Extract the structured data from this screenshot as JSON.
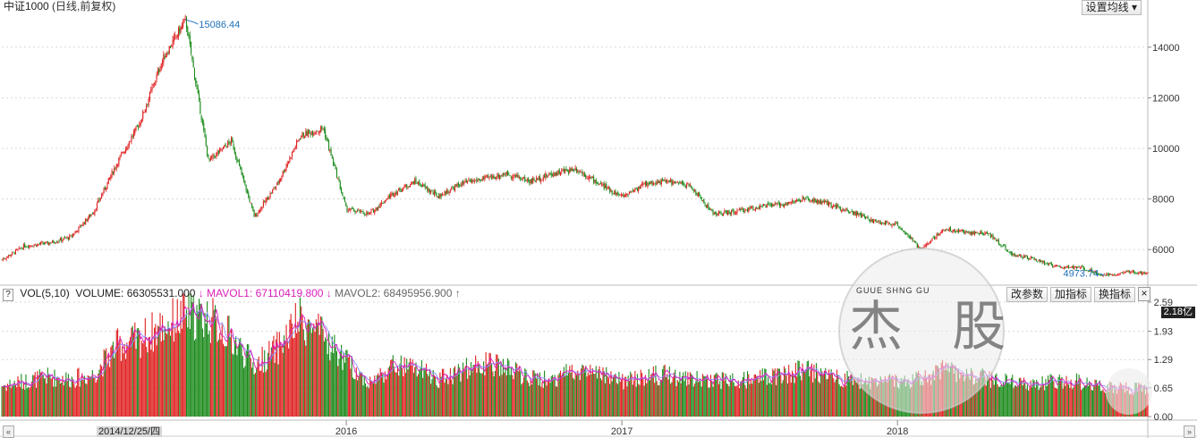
{
  "header": {
    "title": "中证1000",
    "subtitle": "(日线,前复权)",
    "ma_button": "设置均线 ▾"
  },
  "indicator": {
    "help": "?",
    "name": "VOL(5,10)",
    "volume": "VOLUME: 66305531.000",
    "mavol1": "MAVOL1: 67110419.800",
    "mavol2": "MAVOL2: 68495956.900",
    "buttons": [
      "改参数",
      "加指标",
      "换指标"
    ],
    "close": "×",
    "current_value": "2.18亿"
  },
  "watermark": {
    "letters": "GUUE SHNG GU",
    "chars": "杰 股"
  },
  "cursor_date": "2014/12/25/四",
  "colors": {
    "up": "#e02020",
    "down": "#1a8a1a",
    "mavol1": "#d81eb8",
    "mavol2": "#9090ff",
    "grid": "#d8d8d8"
  },
  "chart_data": [
    {
      "type": "candlestick",
      "title": "中证1000 (日线,前复权)",
      "x_labels": [
        "2016",
        "2017",
        "2018"
      ],
      "y_ticks": [
        6000,
        8000,
        10000,
        12000,
        14000
      ],
      "ylim": [
        4700,
        15300
      ],
      "annotations": [
        {
          "label": "15086.44",
          "kind": "max",
          "value": 15086.44,
          "date": "2015-06"
        },
        {
          "label": "4973.74",
          "kind": "min",
          "value": 4973.74,
          "date": "2018-10"
        }
      ],
      "close_path": [
        [
          "2014-10",
          5600
        ],
        [
          "2014-11",
          6150
        ],
        [
          "2014-12",
          6250
        ],
        [
          "2015-01",
          6500
        ],
        [
          "2015-02",
          7500
        ],
        [
          "2015-03",
          9400
        ],
        [
          "2015-04",
          11000
        ],
        [
          "2015-05",
          13500
        ],
        [
          "2015-06",
          15086.44
        ],
        [
          "2015-07",
          9500
        ],
        [
          "2015-08",
          10300
        ],
        [
          "2015-09",
          7300
        ],
        [
          "2015-10",
          8600
        ],
        [
          "2015-11",
          10500
        ],
        [
          "2015-12",
          10800
        ],
        [
          "2016-01",
          7600
        ],
        [
          "2016-02",
          7400
        ],
        [
          "2016-03",
          8200
        ],
        [
          "2016-04",
          8700
        ],
        [
          "2016-05",
          8100
        ],
        [
          "2016-06",
          8600
        ],
        [
          "2016-07",
          8800
        ],
        [
          "2016-08",
          9000
        ],
        [
          "2016-09",
          8700
        ],
        [
          "2016-10",
          9000
        ],
        [
          "2016-11",
          9200
        ],
        [
          "2016-12",
          8600
        ],
        [
          "2017-01",
          8100
        ],
        [
          "2017-02",
          8600
        ],
        [
          "2017-03",
          8700
        ],
        [
          "2017-04",
          8500
        ],
        [
          "2017-05",
          7400
        ],
        [
          "2017-06",
          7500
        ],
        [
          "2017-07",
          7700
        ],
        [
          "2017-08",
          7800
        ],
        [
          "2017-09",
          8000
        ],
        [
          "2017-10",
          7800
        ],
        [
          "2017-11",
          7500
        ],
        [
          "2017-12",
          7100
        ],
        [
          "2018-01",
          7000
        ],
        [
          "2018-02",
          6000
        ],
        [
          "2018-03",
          6800
        ],
        [
          "2018-04",
          6700
        ],
        [
          "2018-05",
          6600
        ],
        [
          "2018-06",
          5800
        ],
        [
          "2018-07",
          5600
        ],
        [
          "2018-08",
          5300
        ],
        [
          "2018-09",
          5300
        ],
        [
          "2018-10",
          4973.74
        ],
        [
          "2018-11",
          5100
        ]
      ]
    },
    {
      "type": "bar",
      "title": "VOL(5,10)",
      "y_ticks": [
        0.0,
        0.65,
        1.29,
        1.93,
        2.59
      ],
      "ylim": [
        0,
        2.59
      ],
      "series": [
        {
          "name": "VOLUME"
        },
        {
          "name": "MAVOL1"
        },
        {
          "name": "MAVOL2"
        }
      ],
      "volume_path": [
        [
          "2014-10",
          0.7
        ],
        [
          "2014-11",
          0.8
        ],
        [
          "2014-12",
          0.9
        ],
        [
          "2015-01",
          0.85
        ],
        [
          "2015-02",
          0.95
        ],
        [
          "2015-03",
          1.6
        ],
        [
          "2015-04",
          1.75
        ],
        [
          "2015-05",
          2.05
        ],
        [
          "2015-06",
          2.3
        ],
        [
          "2015-07",
          2.25
        ],
        [
          "2015-08",
          1.8
        ],
        [
          "2015-09",
          1.15
        ],
        [
          "2015-10",
          1.55
        ],
        [
          "2015-11",
          2.2
        ],
        [
          "2015-12",
          1.8
        ],
        [
          "2016-01",
          1.25
        ],
        [
          "2016-02",
          0.75
        ],
        [
          "2016-03",
          1.15
        ],
        [
          "2016-04",
          1.1
        ],
        [
          "2016-05",
          0.85
        ],
        [
          "2016-06",
          1.05
        ],
        [
          "2016-07",
          1.2
        ],
        [
          "2016-08",
          1.1
        ],
        [
          "2016-09",
          0.85
        ],
        [
          "2016-10",
          0.85
        ],
        [
          "2016-11",
          1.1
        ],
        [
          "2016-12",
          0.95
        ],
        [
          "2017-01",
          0.8
        ],
        [
          "2017-02",
          0.9
        ],
        [
          "2017-03",
          0.95
        ],
        [
          "2017-04",
          0.85
        ],
        [
          "2017-05",
          0.85
        ],
        [
          "2017-06",
          0.8
        ],
        [
          "2017-07",
          0.9
        ],
        [
          "2017-08",
          0.95
        ],
        [
          "2017-09",
          1.05
        ],
        [
          "2017-10",
          0.95
        ],
        [
          "2017-11",
          0.85
        ],
        [
          "2017-12",
          0.75
        ],
        [
          "2018-01",
          0.8
        ],
        [
          "2018-02",
          0.85
        ],
        [
          "2018-03",
          1.05
        ],
        [
          "2018-04",
          0.95
        ],
        [
          "2018-05",
          0.85
        ],
        [
          "2018-06",
          0.8
        ],
        [
          "2018-07",
          0.75
        ],
        [
          "2018-08",
          0.8
        ],
        [
          "2018-09",
          0.8
        ],
        [
          "2018-10",
          0.65
        ],
        [
          "2018-11",
          0.65
        ]
      ]
    }
  ]
}
